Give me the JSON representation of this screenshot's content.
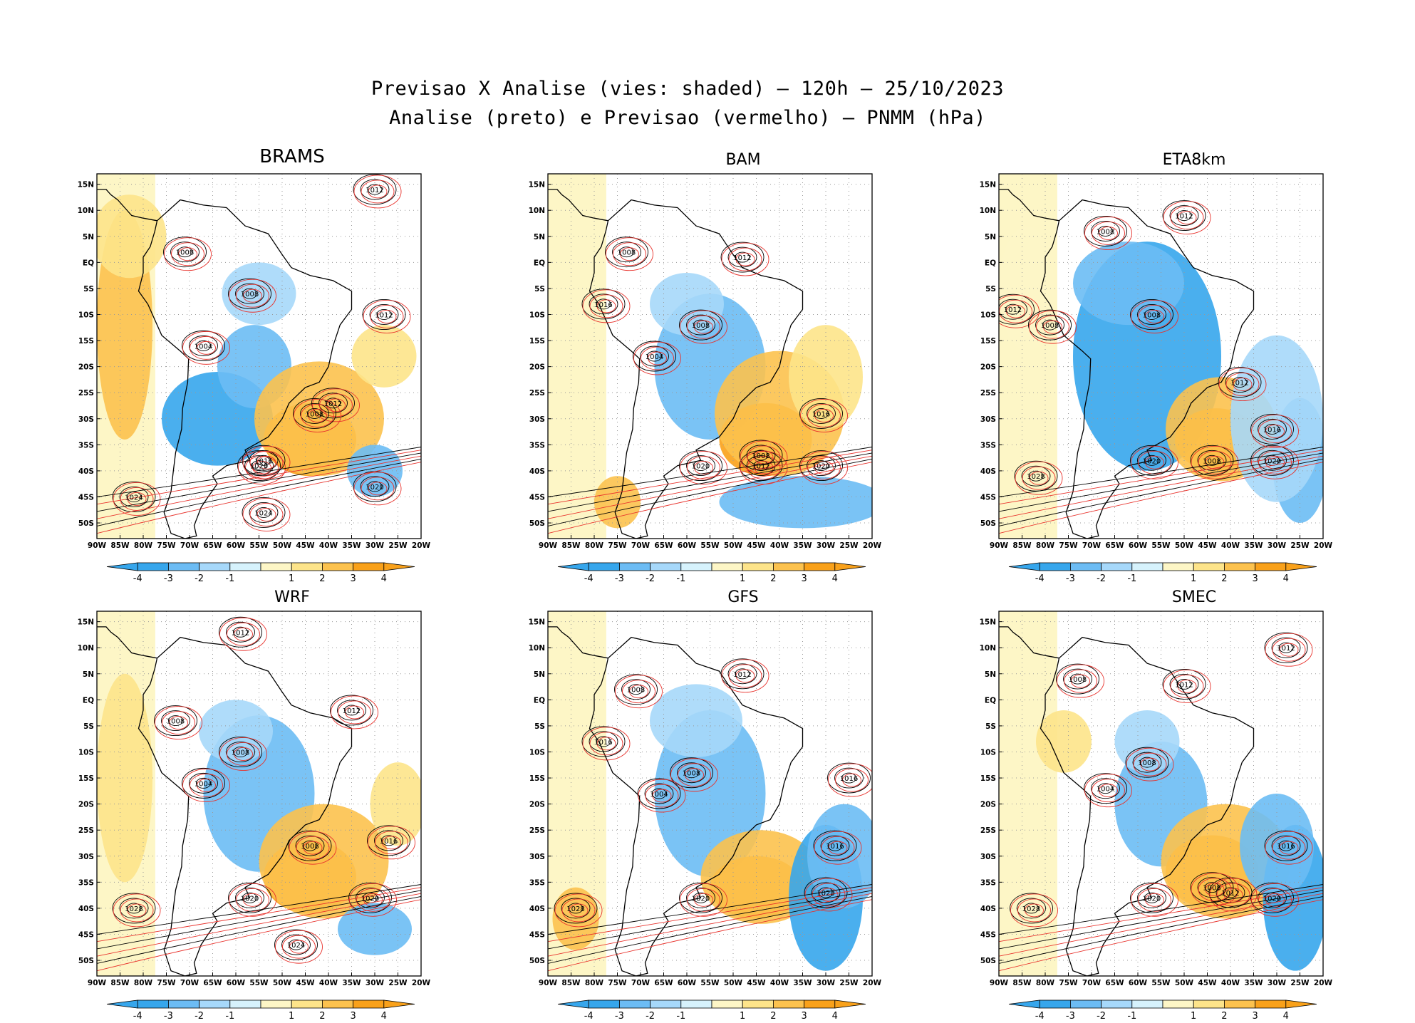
{
  "title": {
    "line1": "Previsao X Analise (vies: shaded) — 120h — 25/10/2023",
    "line2": "Analise (preto) e Previsao (vermelho) — PNMM (hPa)"
  },
  "colors": {
    "neg4": "#36a6ec",
    "neg3": "#6cbcf4",
    "neg2": "#a6d8fa",
    "neg1": "#d6f2fc",
    "pos1": "#fdf6c6",
    "pos2": "#fde48a",
    "pos3": "#fcc24e",
    "pos4": "#f9a11a",
    "analysis": "#000000",
    "forecast": "#e8322c"
  },
  "axes": {
    "lat_ticks": [
      "15N",
      "10N",
      "5N",
      "EQ",
      "5S",
      "10S",
      "15S",
      "20S",
      "25S",
      "30S",
      "35S",
      "40S",
      "45S",
      "50S"
    ],
    "lon_ticks": [
      "90W",
      "85W",
      "80W",
      "75W",
      "70W",
      "65W",
      "60W",
      "55W",
      "50W",
      "45W",
      "40W",
      "35W",
      "30W",
      "25W",
      "20W"
    ]
  },
  "colorbar": {
    "labels": [
      "-4",
      "-3",
      "-2",
      "-1",
      "1",
      "2",
      "3",
      "4"
    ]
  },
  "chart_data": [
    {
      "type": "heatmap",
      "model": "BRAMS",
      "title": "BRAMS",
      "variable": "PNMM bias (hPa)",
      "lon_range": [
        -90,
        -20
      ],
      "lat_range": [
        -53,
        17
      ],
      "highs": [
        {
          "label": "1024",
          "lon": -82,
          "lat": -45
        },
        {
          "label": "1020",
          "lon": -55,
          "lat": -39
        },
        {
          "label": "1020",
          "lon": -30,
          "lat": -43
        },
        {
          "label": "1016",
          "lon": -54,
          "lat": -38
        },
        {
          "label": "1024",
          "lon": -54,
          "lat": -48
        },
        {
          "label": "1012",
          "lon": -39,
          "lat": -27
        },
        {
          "label": "1012",
          "lon": -28,
          "lat": -10
        },
        {
          "label": "1012",
          "lon": -30,
          "lat": 14
        }
      ],
      "lows": [
        {
          "label": "1008",
          "lon": -43,
          "lat": -29
        },
        {
          "label": "1004",
          "lon": -67,
          "lat": -16
        },
        {
          "label": "1008",
          "lon": -57,
          "lat": -6
        },
        {
          "label": "1008",
          "lon": -71,
          "lat": 2
        }
      ]
    },
    {
      "type": "heatmap",
      "model": "BAM",
      "title": "BAM",
      "variable": "PNMM bias (hPa)",
      "lon_range": [
        -90,
        -20
      ],
      "lat_range": [
        -53,
        17
      ],
      "highs": [
        {
          "label": "1020",
          "lon": -57,
          "lat": -39
        },
        {
          "label": "1020",
          "lon": -31,
          "lat": -39
        },
        {
          "label": "1016",
          "lon": -31,
          "lat": -29
        },
        {
          "label": "1012",
          "lon": -44,
          "lat": -39
        },
        {
          "label": "1012",
          "lon": -48,
          "lat": 1
        },
        {
          "label": "1016",
          "lon": -78,
          "lat": -8
        }
      ],
      "lows": [
        {
          "label": "1008",
          "lon": -44,
          "lat": -37
        },
        {
          "label": "1004",
          "lon": -67,
          "lat": -18
        },
        {
          "label": "1008",
          "lon": -57,
          "lat": -12
        },
        {
          "label": "1008",
          "lon": -73,
          "lat": 2
        }
      ]
    },
    {
      "type": "heatmap",
      "model": "ETA8km",
      "title": "ETA8km",
      "variable": "PNMM bias (hPa)",
      "lon_range": [
        -90,
        -20
      ],
      "lat_range": [
        -53,
        17
      ],
      "highs": [
        {
          "label": "1028",
          "lon": -82,
          "lat": -41
        },
        {
          "label": "1020",
          "lon": -57,
          "lat": -38
        },
        {
          "label": "1020",
          "lon": -31,
          "lat": -38
        },
        {
          "label": "1016",
          "lon": -31,
          "lat": -32
        },
        {
          "label": "1012",
          "lon": -38,
          "lat": -23
        },
        {
          "label": "1012",
          "lon": -87,
          "lat": -9
        },
        {
          "label": "1012",
          "lon": -50,
          "lat": 9
        }
      ],
      "lows": [
        {
          "label": "1008",
          "lon": -44,
          "lat": -38
        },
        {
          "label": "1008",
          "lon": -57,
          "lat": -10
        },
        {
          "label": "1008",
          "lon": -67,
          "lat": 6
        },
        {
          "label": "1008",
          "lon": -79,
          "lat": -12
        }
      ]
    },
    {
      "type": "heatmap",
      "model": "WRF",
      "title": "WRF",
      "variable": "PNMM bias (hPa)",
      "lon_range": [
        -90,
        -20
      ],
      "lat_range": [
        -53,
        17
      ],
      "highs": [
        {
          "label": "1028",
          "lon": -82,
          "lat": -40
        },
        {
          "label": "1020",
          "lon": -57,
          "lat": -38
        },
        {
          "label": "1020",
          "lon": -31,
          "lat": -38
        },
        {
          "label": "1016",
          "lon": -27,
          "lat": -27
        },
        {
          "label": "1024",
          "lon": -47,
          "lat": -47
        },
        {
          "label": "1012",
          "lon": -59,
          "lat": 13
        },
        {
          "label": "1012",
          "lon": -35,
          "lat": -2
        }
      ],
      "lows": [
        {
          "label": "1008",
          "lon": -44,
          "lat": -28
        },
        {
          "label": "1008",
          "lon": -59,
          "lat": -10
        },
        {
          "label": "1004",
          "lon": -67,
          "lat": -16
        },
        {
          "label": "1008",
          "lon": -73,
          "lat": -4
        }
      ]
    },
    {
      "type": "heatmap",
      "model": "GFS",
      "title": "GFS",
      "variable": "PNMM bias (hPa)",
      "lon_range": [
        -90,
        -20
      ],
      "lat_range": [
        -53,
        17
      ],
      "highs": [
        {
          "label": "1028",
          "lon": -84,
          "lat": -40
        },
        {
          "label": "1020",
          "lon": -57,
          "lat": -38
        },
        {
          "label": "1020",
          "lon": -30,
          "lat": -37
        },
        {
          "label": "1016",
          "lon": -28,
          "lat": -28
        },
        {
          "label": "1016",
          "lon": -25,
          "lat": -15
        },
        {
          "label": "1012",
          "lon": -48,
          "lat": 5
        },
        {
          "label": "1016",
          "lon": -78,
          "lat": -8
        }
      ],
      "lows": [
        {
          "label": "1008",
          "lon": -59,
          "lat": -14
        },
        {
          "label": "1004",
          "lon": -66,
          "lat": -18
        },
        {
          "label": "1008",
          "lon": -71,
          "lat": 2
        }
      ]
    },
    {
      "type": "heatmap",
      "model": "SMEC",
      "title": "SMEC",
      "variable": "PNMM bias (hPa)",
      "lon_range": [
        -90,
        -20
      ],
      "lat_range": [
        -53,
        17
      ],
      "highs": [
        {
          "label": "1028",
          "lon": -83,
          "lat": -40
        },
        {
          "label": "1020",
          "lon": -57,
          "lat": -38
        },
        {
          "label": "1020",
          "lon": -31,
          "lat": -38
        },
        {
          "label": "1016",
          "lon": -28,
          "lat": -28
        },
        {
          "label": "1012",
          "lon": -40,
          "lat": -37
        },
        {
          "label": "1012",
          "lon": -50,
          "lat": 3
        },
        {
          "label": "1012",
          "lon": -28,
          "lat": 10
        }
      ],
      "lows": [
        {
          "label": "1008",
          "lon": -44,
          "lat": -36
        },
        {
          "label": "1004",
          "lon": -67,
          "lat": -17
        },
        {
          "label": "1008",
          "lon": -58,
          "lat": -12
        },
        {
          "label": "1008",
          "lon": -73,
          "lat": 4
        }
      ]
    }
  ]
}
